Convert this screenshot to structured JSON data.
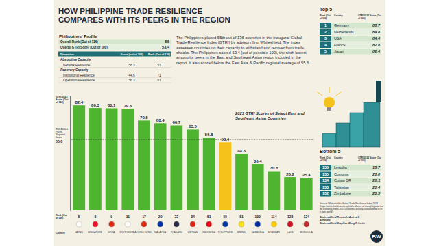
{
  "header": {
    "title": [
      "HOW PHILIPPINE TRADE RESILIENCE",
      "COMPARES WITH ITS PEERS IN THE REGION"
    ]
  },
  "profile": {
    "title": "Philippines' Profile",
    "overall": [
      [
        "Overall Rank (Out of 136)",
        "55"
      ],
      [
        "Overall GTRI Score (Out of 100)",
        "53.4"
      ]
    ],
    "columns": [
      "Dimension",
      "Score (out of 100)",
      "Rank (Out of 136)"
    ],
    "sections": [
      {
        "name": "Absorptive Capacity",
        "rows": [
          [
            "Network Resilience",
            "56.3",
            "53"
          ]
        ]
      },
      {
        "name": "Recovery Capacity",
        "rows": [
          [
            "Institutional Resilience",
            "44.6",
            "71"
          ],
          [
            "Operational Resilience",
            "56.3",
            "61"
          ]
        ]
      }
    ]
  },
  "paragraph": "The Philippines placed 55th out of 136 countries in the inaugural Global Trade Resilience Index (GTRI) by advisory firm Whiteshield. The index assesses countries on their capacity to withstand and recover from trade shocks. The Philippines scored 53.4 (out of possible 100), the sixth lowest among its peers in the East and Southeast Asian region included in the report. It also scored below the East Asia & Pacific regional average of 55.6.",
  "top5": {
    "title": "Top 5",
    "columns": [
      "Rank (Out of 136)",
      "Country",
      "GTRI 2023 Score (Out of 100)"
    ],
    "rows": [
      [
        "1",
        "Germany",
        "88.7"
      ],
      [
        "2",
        "Netherlands",
        "84.8"
      ],
      [
        "3",
        "USA",
        "84.4"
      ],
      [
        "4",
        "France",
        "82.8"
      ],
      [
        "5",
        "Japan",
        "82.4"
      ]
    ]
  },
  "bottom5": {
    "title": "Bottom 5",
    "columns": [
      "Rank (Out of 136)",
      "Country",
      "GTRI 2023 Score (Out of 100)"
    ],
    "rows": [
      [
        "136",
        "Lesotho",
        "18.7"
      ],
      [
        "135",
        "Comoros",
        "20.0"
      ],
      [
        "134",
        "Congo DR",
        "20.3"
      ],
      [
        "133",
        "Tajikistan",
        "20.4"
      ],
      [
        "132",
        "Zimbabwe",
        "20.5"
      ]
    ]
  },
  "source": {
    "text": "Source: Whiteshield's Global Trade Resilience Index 2023 (https://whiteshield.com/insights/resilience-of-thought/global-trade-resilience-index-2023-economic-security-sustainability-in-the-twin-world/)",
    "credits": [
      "BusinessWorld Research: Andrea C. Abestano",
      "BusinessWorld Graphics: Bong R. Fortin"
    ],
    "logo": "BW"
  },
  "chart_data": {
    "type": "bar",
    "title": "2023 GTRI Scores of Select East and Southeast Asian Countries",
    "y_label": "GTRI 2023 Score (Out of 100)",
    "categories": [
      "JAPAN",
      "SINGAPORE",
      "CHINA",
      "SOUTH KOREA",
      "HONG KONG",
      "MALAYSIA",
      "THAILAND",
      "VIETNAM",
      "INDONESIA",
      "PHILIPPINES",
      "BRUNEI",
      "CAMBODIA",
      "MYANMAR",
      "LAOS",
      "MONGOLIA"
    ],
    "values": [
      82.4,
      80.3,
      80.1,
      79.6,
      70.5,
      68.4,
      66.7,
      63.5,
      56.8,
      53.4,
      44.3,
      36.4,
      30.8,
      26.2,
      25.4
    ],
    "colors": [
      "#4fb531",
      "#4fb531",
      "#4fb531",
      "#4fb531",
      "#4fb531",
      "#4fb531",
      "#4fb531",
      "#4fb531",
      "#4fb531",
      "#f5c21b",
      "#4fb531",
      "#4fb531",
      "#4fb531",
      "#4fb531",
      "#4fb531"
    ],
    "ranks": [
      5,
      8,
      9,
      11,
      17,
      20,
      22,
      34,
      51,
      55,
      81,
      100,
      114,
      123,
      124
    ],
    "rank_label": "Rank (Out of 136)",
    "category_label": "Country",
    "reference_line": {
      "label": "East Asia & Pacific Regional Score",
      "value": 55.6
    },
    "ylim": [
      0,
      90
    ],
    "yticks": [],
    "grid": false,
    "data_labels": true,
    "tick_labels": "x"
  }
}
